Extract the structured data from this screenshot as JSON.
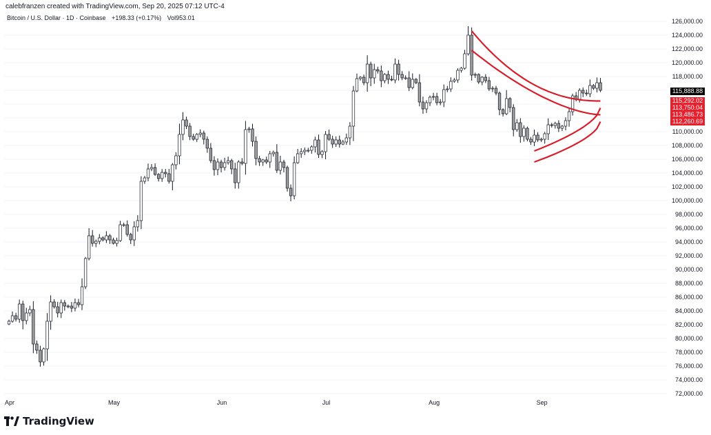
{
  "credit": "calebfranzen created with TradingView.com, Sep 20, 2025 07:12 UTC-4",
  "header": {
    "symbol": "Bitcoin / U.S. Dollar · 1D · Coinbase",
    "change": "+198.33 (+0.17%)",
    "volume": "Vol953.01"
  },
  "brand": {
    "name": "TradingView",
    "icon": "tradingview-logo-icon"
  },
  "colors": {
    "up": "#ffffff",
    "down": "#9e9e9e",
    "wick": "#131722",
    "bands": "#d61f2b",
    "grid": "#f0f3fa",
    "axis_text": "#131722",
    "last_price_bg": "#000000",
    "band_label_bg": "#e8202e"
  },
  "chart_data": {
    "type": "candlestick",
    "y_ticks": [
      "126,000.00",
      "124,000.00",
      "122,000.00",
      "120,000.00",
      "118,000.00",
      "116,000.00",
      "114,000.00",
      "112,000.00",
      "110,000.00",
      "108,000.00",
      "106,000.00",
      "104,000.00",
      "102,000.00",
      "100,000.00",
      "98,000.00",
      "96,000.00",
      "94,000.00",
      "92,000.00",
      "90,000.00",
      "88,000.00",
      "86,000.00",
      "84,000.00",
      "82,000.00",
      "80,000.00",
      "78,000.00",
      "76,000.00",
      "74,000.00",
      "72,000.00"
    ],
    "x_labels": [
      {
        "label": "Apr",
        "index": 0
      },
      {
        "label": "May",
        "index": 30
      },
      {
        "label": "Jun",
        "index": 61
      },
      {
        "label": "Jul",
        "index": 91
      },
      {
        "label": "Aug",
        "index": 122
      },
      {
        "label": "Sep",
        "index": 153
      }
    ],
    "ylim": [
      71000,
      127000
    ],
    "candle_range": "2025-04-01 to 2025-09-19, daily",
    "closes": [
      82500,
      83300,
      82800,
      85000,
      82600,
      83700,
      84200,
      79200,
      78300,
      76600,
      78500,
      82500,
      85300,
      84600,
      83700,
      85200,
      84700,
      84700,
      84400,
      85200,
      84900,
      87500,
      91600,
      94900,
      93800,
      94100,
      94600,
      94300,
      94900,
      94300,
      93800,
      94200,
      96500,
      96500,
      95100,
      94300,
      96200,
      97100,
      102800,
      103300,
      104600,
      104800,
      103800,
      103200,
      104100,
      103900,
      102800,
      105200,
      106500,
      109600,
      111700,
      110800,
      109300,
      108900,
      109600,
      109800,
      108900,
      107600,
      105800,
      104500,
      105600,
      104800,
      105500,
      105800,
      104600,
      102600,
      105600,
      105400,
      110300,
      110400,
      108600,
      106100,
      105600,
      105900,
      105600,
      106800,
      107000,
      104400,
      105600,
      104800,
      101800,
      100700,
      105500,
      106800,
      107100,
      107300,
      107300,
      107800,
      108800,
      106700,
      107100,
      109600,
      108900,
      108200,
      108800,
      108200,
      108500,
      109100,
      110800,
      115900,
      117700,
      117900,
      117100,
      119800,
      117800,
      119000,
      118800,
      117400,
      118300,
      117600,
      117500,
      119800,
      118300,
      117800,
      117800,
      116400,
      117600,
      117100,
      114300,
      113300,
      114200,
      115000,
      115100,
      114200,
      114300,
      116100,
      116200,
      117300,
      117500,
      118900,
      119200,
      121300,
      124000,
      118200,
      118300,
      117200,
      117900,
      117400,
      116200,
      116300,
      115600,
      113200,
      112600,
      114800,
      113500,
      110300,
      111300,
      109300,
      110500,
      108900,
      108500,
      109500,
      108800,
      108900,
      109700,
      111000,
      110900,
      111200,
      110500,
      110800,
      111600,
      112900,
      115200,
      114700,
      116000,
      115600,
      115500,
      116700,
      116300,
      117100,
      116000
    ]
  },
  "price_labels": [
    {
      "value": "115,888.88",
      "price": 115889,
      "kind": "last"
    },
    {
      "value": "115,292.02",
      "price": 114450,
      "kind": "band"
    },
    {
      "value": "113,750.04",
      "price": 113450,
      "kind": "band"
    },
    {
      "value": "113,486.73",
      "price": 112450,
      "kind": "band"
    },
    {
      "value": "112,260.69",
      "price": 111450,
      "kind": "band"
    }
  ]
}
